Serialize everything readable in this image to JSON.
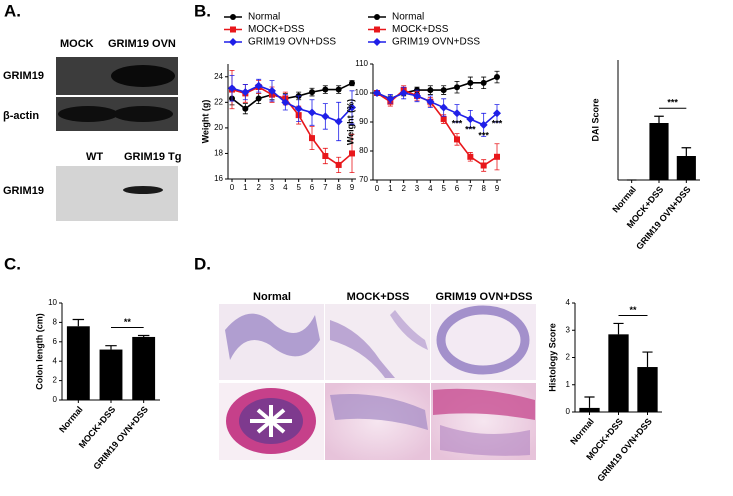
{
  "panels": {
    "a": {
      "label": "A.",
      "blot_top": {
        "lanes": [
          "MOCK",
          "GRIM19 OVN"
        ],
        "rows": [
          "GRIM19",
          "β-actin"
        ]
      },
      "blot_bottom": {
        "lanes": [
          "WT",
          "GRIM19 Tg"
        ],
        "rows": [
          "GRIM19"
        ]
      }
    },
    "b": {
      "label": "B."
    },
    "c": {
      "label": "C."
    },
    "d": {
      "label": "D.",
      "image_columns": [
        "Normal",
        "MOCK+DSS",
        "GRIM19 OVN+DSS"
      ]
    }
  },
  "chart_data": [
    {
      "type": "line",
      "y_label": "Weight (g)",
      "x": [
        0,
        1,
        2,
        3,
        4,
        5,
        6,
        7,
        8,
        9
      ],
      "xlim": [
        -0.3,
        9.3
      ],
      "xticks": [
        0,
        1,
        2,
        3,
        4,
        5,
        6,
        7,
        8,
        9
      ],
      "ylim": [
        16,
        25
      ],
      "yticks": [
        16,
        18,
        20,
        22,
        24
      ],
      "series": [
        {
          "name": "Normal",
          "color": "#000000",
          "marker": "circle",
          "values": [
            22.3,
            21.5,
            22.3,
            22.6,
            22.3,
            22.5,
            22.8,
            23.0,
            23.0,
            23.5
          ],
          "errors": [
            0.5,
            0.4,
            0.4,
            0.4,
            0.4,
            0.3,
            0.3,
            0.3,
            0.3,
            0.2
          ]
        },
        {
          "name": "MOCK+DSS",
          "color": "#e8171b",
          "marker": "square",
          "values": [
            23.0,
            22.7,
            23.2,
            22.6,
            22.3,
            21.0,
            19.2,
            17.8,
            17.1,
            18.0
          ],
          "errors": [
            1.5,
            0.7,
            0.5,
            0.6,
            0.5,
            0.7,
            0.9,
            0.6,
            0.6,
            1.5
          ]
        },
        {
          "name": "GRIM19 OVN+DSS",
          "color": "#1f1fe8",
          "marker": "diamond",
          "values": [
            23.1,
            22.8,
            23.3,
            22.9,
            22.0,
            21.5,
            21.2,
            20.9,
            20.5,
            21.6
          ],
          "errors": [
            1.0,
            0.6,
            0.5,
            0.8,
            0.6,
            1.0,
            1.0,
            1.0,
            1.5,
            1.3
          ]
        }
      ]
    },
    {
      "type": "line",
      "y_label": "Weight (%)",
      "x": [
        0,
        1,
        2,
        3,
        4,
        5,
        6,
        7,
        8,
        9
      ],
      "xlim": [
        -0.3,
        9.3
      ],
      "xticks": [
        0,
        1,
        2,
        3,
        4,
        5,
        6,
        7,
        8,
        9
      ],
      "ylim": [
        70,
        110
      ],
      "yticks": [
        70,
        80,
        90,
        100,
        110
      ],
      "series": [
        {
          "name": "Normal",
          "color": "#000000",
          "marker": "circle",
          "values": [
            100,
            98,
            100,
            101,
            101,
            101,
            102,
            103.5,
            103.5,
            105.5
          ],
          "errors": [
            0.5,
            1,
            1,
            1,
            1.5,
            1.5,
            2,
            2,
            2,
            2
          ]
        },
        {
          "name": "MOCK+DSS",
          "color": "#e8171b",
          "marker": "square",
          "values": [
            100,
            97,
            101,
            99,
            97,
            91,
            84,
            78,
            75,
            78
          ],
          "errors": [
            0.5,
            1.5,
            1.5,
            1.5,
            1.5,
            1.5,
            2,
            1.5,
            2,
            4.5
          ]
        },
        {
          "name": "GRIM19 OVN+DSS",
          "color": "#1f1fe8",
          "marker": "diamond",
          "values": [
            100,
            98,
            100,
            99,
            97,
            95,
            93,
            91,
            89,
            93
          ],
          "errors": [
            0.5,
            1.5,
            2,
            2,
            2,
            3,
            3,
            3,
            4,
            3
          ]
        }
      ],
      "annotations": [
        {
          "x": 6,
          "text": "***"
        },
        {
          "x": 7,
          "text": "***"
        },
        {
          "x": 8,
          "text": "***"
        },
        {
          "x": 9,
          "text": "***"
        }
      ]
    },
    {
      "type": "bar",
      "y_label": "DAI Score",
      "color": "#000000",
      "categories": [
        "Normal",
        "MOCK+DSS",
        "GRIM19 OVN+DSS"
      ],
      "values": [
        0,
        3.8,
        1.6
      ],
      "errors": [
        0,
        0.45,
        0.55
      ],
      "ylim": [
        0,
        8
      ],
      "significance": "***"
    },
    {
      "type": "bar",
      "y_label": "Colon length (cm)",
      "color": "#000000",
      "categories": [
        "Normal",
        "MOCK+DSS",
        "GRIM19 OVN+DSS"
      ],
      "values": [
        7.6,
        5.2,
        6.5
      ],
      "errors": [
        0.7,
        0.4,
        0.15
      ],
      "ylim": [
        0,
        10
      ],
      "yticks": [
        0,
        2,
        4,
        6,
        8,
        10
      ],
      "significance": "**"
    },
    {
      "type": "bar",
      "y_label": "Histology Score",
      "color": "#000000",
      "categories": [
        "Normal",
        "MOCK+DSS",
        "GRIM19 OVN+DSS"
      ],
      "values": [
        0.15,
        2.85,
        1.65
      ],
      "errors": [
        0.4,
        0.4,
        0.55
      ],
      "ylim": [
        0,
        4
      ],
      "yticks": [
        0,
        1,
        2,
        3,
        4
      ],
      "significance": "**"
    }
  ]
}
